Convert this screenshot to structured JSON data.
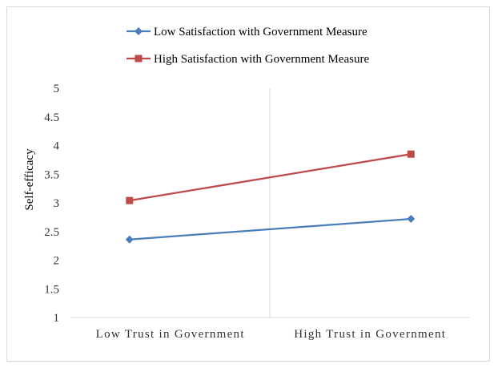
{
  "chart_data": {
    "type": "line",
    "categories": [
      "Low Trust in Government",
      "High Trust in Government"
    ],
    "series": [
      {
        "name": "Low Satisfaction with Government Measure",
        "values": [
          2.36,
          2.72
        ],
        "color": "#4a7ebb",
        "marker": "diamond"
      },
      {
        "name": "High Satisfaction with Government Measure",
        "values": [
          3.04,
          3.85
        ],
        "color": "#be4b48",
        "marker": "square"
      }
    ],
    "ylabel": "Self-efficacy",
    "ylim": [
      1,
      5
    ],
    "yticks": [
      "1",
      "1.5",
      "2",
      "2.5",
      "3",
      "3.5",
      "4",
      "4.5",
      "5"
    ],
    "legend_position": "top",
    "grid": false
  }
}
